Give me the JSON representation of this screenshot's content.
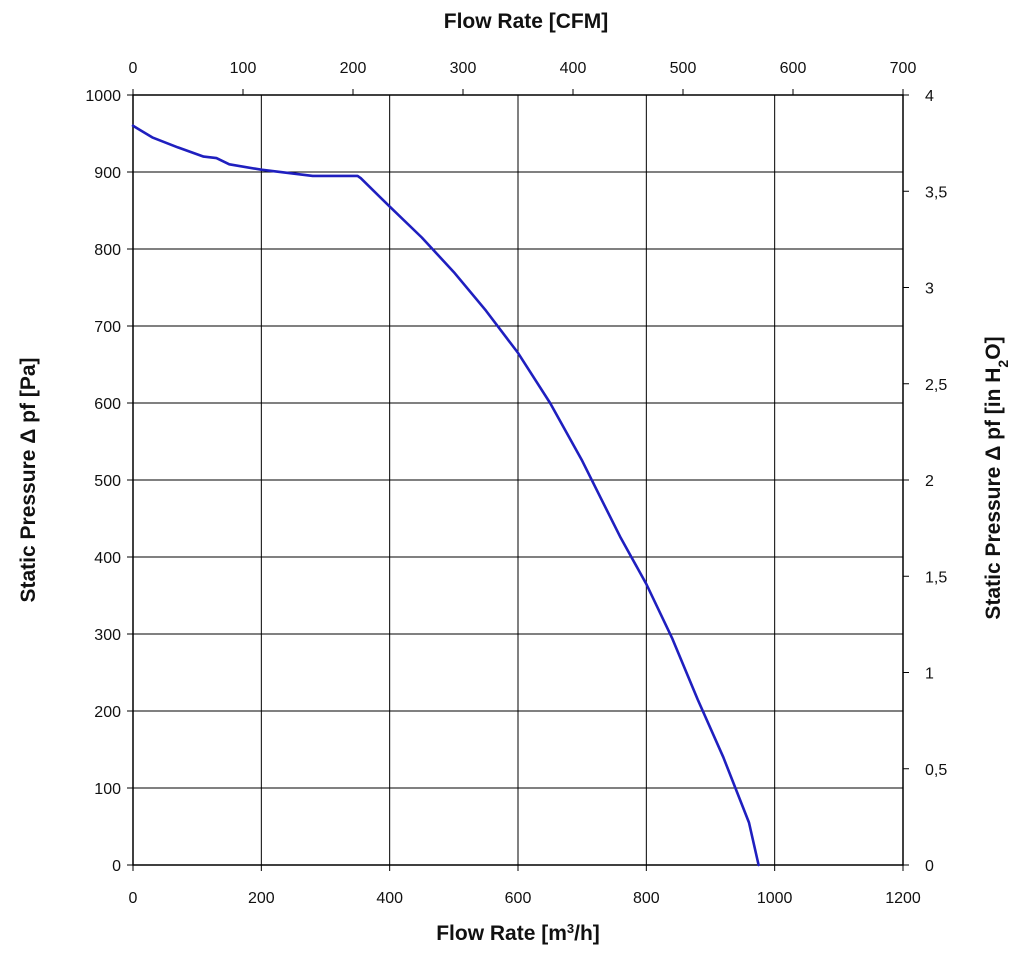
{
  "chart_data": {
    "type": "line",
    "title": "",
    "x_axis_bottom": {
      "label_main": "Flow Rate [m",
      "label_sup": "3",
      "label_end": "/h]",
      "range": [
        0,
        1200
      ],
      "ticks": [
        "0",
        "200",
        "400",
        "600",
        "800",
        "1000",
        "1200"
      ]
    },
    "x_axis_top": {
      "label": "Flow Rate [CFM]",
      "range": [
        0,
        700
      ],
      "ticks": [
        "0",
        "100",
        "200",
        "300",
        "400",
        "500",
        "600",
        "700"
      ]
    },
    "y_axis_left": {
      "label": "Static Pressure Δ pf [Pa]",
      "range": [
        0,
        1000
      ],
      "ticks": [
        "0",
        "100",
        "200",
        "300",
        "400",
        "500",
        "600",
        "700",
        "800",
        "900",
        "1000"
      ]
    },
    "y_axis_right": {
      "label_main": "Static Pressure Δ pf [in H",
      "label_sub": "2",
      "label_end": "O]",
      "range": [
        0,
        4
      ],
      "ticks": [
        "0",
        "0,5",
        "1",
        "1,5",
        "2",
        "2,5",
        "3",
        "3,5",
        "4"
      ]
    },
    "grid": true,
    "colors": {
      "curve": "#1f1fbf",
      "grid": "#000000",
      "frame": "#000000"
    },
    "series": [
      {
        "x": [
          0,
          30,
          70,
          110,
          130,
          150,
          200,
          280,
          350,
          355,
          400,
          450,
          500,
          550,
          600,
          650,
          700,
          730,
          760,
          800,
          840,
          880,
          920,
          960,
          975
        ],
        "y": [
          960,
          945,
          932,
          920,
          918,
          910,
          903,
          895,
          895,
          892,
          855,
          815,
          770,
          720,
          665,
          600,
          525,
          475,
          425,
          365,
          295,
          215,
          140,
          55,
          0
        ]
      }
    ]
  }
}
